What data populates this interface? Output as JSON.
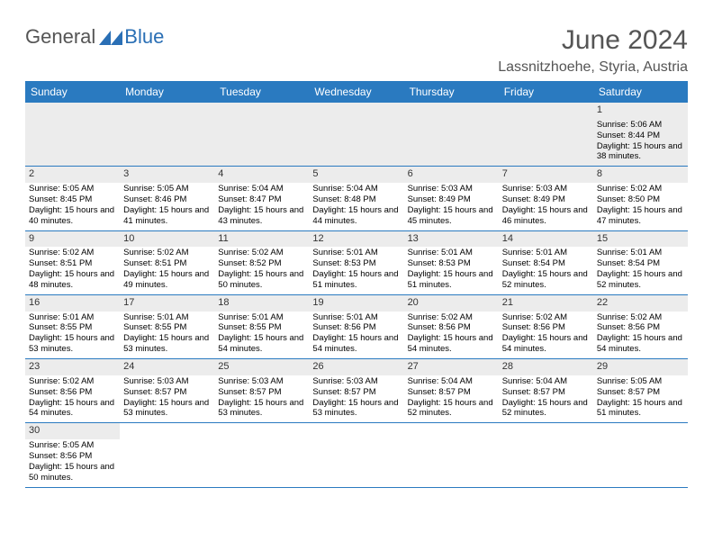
{
  "logo": {
    "part1": "General",
    "part2": "Blue"
  },
  "title": "June 2024",
  "location": "Lassnitzhoehe, Styria, Austria",
  "daysOfWeek": [
    "Sunday",
    "Monday",
    "Tuesday",
    "Wednesday",
    "Thursday",
    "Friday",
    "Saturday"
  ],
  "colors": {
    "headerBg": "#2a7ac0",
    "headerText": "#ffffff",
    "shade": "#ececec",
    "rowBorder": "#2a7ac0",
    "titleColor": "#555555",
    "textColor": "#333333"
  },
  "weeks": [
    [
      null,
      null,
      null,
      null,
      null,
      null,
      {
        "n": "1",
        "sr": "5:06 AM",
        "ss": "8:44 PM",
        "dl": "15 hours and 38 minutes."
      }
    ],
    [
      {
        "n": "2",
        "sr": "5:05 AM",
        "ss": "8:45 PM",
        "dl": "15 hours and 40 minutes."
      },
      {
        "n": "3",
        "sr": "5:05 AM",
        "ss": "8:46 PM",
        "dl": "15 hours and 41 minutes."
      },
      {
        "n": "4",
        "sr": "5:04 AM",
        "ss": "8:47 PM",
        "dl": "15 hours and 43 minutes."
      },
      {
        "n": "5",
        "sr": "5:04 AM",
        "ss": "8:48 PM",
        "dl": "15 hours and 44 minutes."
      },
      {
        "n": "6",
        "sr": "5:03 AM",
        "ss": "8:49 PM",
        "dl": "15 hours and 45 minutes."
      },
      {
        "n": "7",
        "sr": "5:03 AM",
        "ss": "8:49 PM",
        "dl": "15 hours and 46 minutes."
      },
      {
        "n": "8",
        "sr": "5:02 AM",
        "ss": "8:50 PM",
        "dl": "15 hours and 47 minutes."
      }
    ],
    [
      {
        "n": "9",
        "sr": "5:02 AM",
        "ss": "8:51 PM",
        "dl": "15 hours and 48 minutes."
      },
      {
        "n": "10",
        "sr": "5:02 AM",
        "ss": "8:51 PM",
        "dl": "15 hours and 49 minutes."
      },
      {
        "n": "11",
        "sr": "5:02 AM",
        "ss": "8:52 PM",
        "dl": "15 hours and 50 minutes."
      },
      {
        "n": "12",
        "sr": "5:01 AM",
        "ss": "8:53 PM",
        "dl": "15 hours and 51 minutes."
      },
      {
        "n": "13",
        "sr": "5:01 AM",
        "ss": "8:53 PM",
        "dl": "15 hours and 51 minutes."
      },
      {
        "n": "14",
        "sr": "5:01 AM",
        "ss": "8:54 PM",
        "dl": "15 hours and 52 minutes."
      },
      {
        "n": "15",
        "sr": "5:01 AM",
        "ss": "8:54 PM",
        "dl": "15 hours and 52 minutes."
      }
    ],
    [
      {
        "n": "16",
        "sr": "5:01 AM",
        "ss": "8:55 PM",
        "dl": "15 hours and 53 minutes."
      },
      {
        "n": "17",
        "sr": "5:01 AM",
        "ss": "8:55 PM",
        "dl": "15 hours and 53 minutes."
      },
      {
        "n": "18",
        "sr": "5:01 AM",
        "ss": "8:55 PM",
        "dl": "15 hours and 54 minutes."
      },
      {
        "n": "19",
        "sr": "5:01 AM",
        "ss": "8:56 PM",
        "dl": "15 hours and 54 minutes."
      },
      {
        "n": "20",
        "sr": "5:02 AM",
        "ss": "8:56 PM",
        "dl": "15 hours and 54 minutes."
      },
      {
        "n": "21",
        "sr": "5:02 AM",
        "ss": "8:56 PM",
        "dl": "15 hours and 54 minutes."
      },
      {
        "n": "22",
        "sr": "5:02 AM",
        "ss": "8:56 PM",
        "dl": "15 hours and 54 minutes."
      }
    ],
    [
      {
        "n": "23",
        "sr": "5:02 AM",
        "ss": "8:56 PM",
        "dl": "15 hours and 54 minutes."
      },
      {
        "n": "24",
        "sr": "5:03 AM",
        "ss": "8:57 PM",
        "dl": "15 hours and 53 minutes."
      },
      {
        "n": "25",
        "sr": "5:03 AM",
        "ss": "8:57 PM",
        "dl": "15 hours and 53 minutes."
      },
      {
        "n": "26",
        "sr": "5:03 AM",
        "ss": "8:57 PM",
        "dl": "15 hours and 53 minutes."
      },
      {
        "n": "27",
        "sr": "5:04 AM",
        "ss": "8:57 PM",
        "dl": "15 hours and 52 minutes."
      },
      {
        "n": "28",
        "sr": "5:04 AM",
        "ss": "8:57 PM",
        "dl": "15 hours and 52 minutes."
      },
      {
        "n": "29",
        "sr": "5:05 AM",
        "ss": "8:57 PM",
        "dl": "15 hours and 51 minutes."
      }
    ],
    [
      {
        "n": "30",
        "sr": "5:05 AM",
        "ss": "8:56 PM",
        "dl": "15 hours and 50 minutes."
      },
      null,
      null,
      null,
      null,
      null,
      null
    ]
  ]
}
